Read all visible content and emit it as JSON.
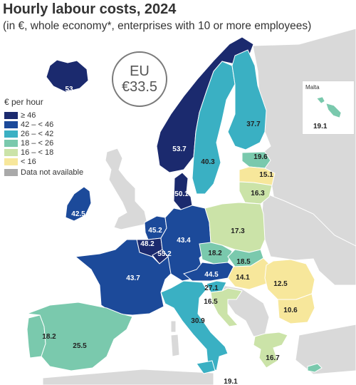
{
  "header": {
    "title": "Hourly labour costs, 2024",
    "subtitle": "(in €, whole economy*, enterprises with 10 or more employees)"
  },
  "eu_average": {
    "code": "EU",
    "value": "€33.5"
  },
  "legend": {
    "title": "€ per hour",
    "classes": [
      {
        "label": "≥ 46",
        "color": "#1b2a6e"
      },
      {
        "label": "42 – < 46",
        "color": "#1c4a9a"
      },
      {
        "label": "26 – < 42",
        "color": "#3ab0c3"
      },
      {
        "label": "18 – < 26",
        "color": "#7ac9ad"
      },
      {
        "label": "16 – < 18",
        "color": "#cbe3a8"
      },
      {
        "label": "< 16",
        "color": "#f7e79b"
      }
    ],
    "not_available": {
      "label": "Data not available",
      "color": "#a9a9a9"
    }
  },
  "inset": {
    "title": "Malta",
    "value": "19.1"
  },
  "countries": [
    {
      "code": "IS",
      "label": "53",
      "class": 0
    },
    {
      "code": "NO",
      "label": "53.7",
      "class": 0
    },
    {
      "code": "SE",
      "label": "40.3",
      "class": 2
    },
    {
      "code": "FI",
      "label": "37.7",
      "class": 2
    },
    {
      "code": "EE",
      "label": "19.6",
      "class": 3
    },
    {
      "code": "LV",
      "label": "15.1",
      "class": 5
    },
    {
      "code": "LT",
      "label": "16.3",
      "class": 4
    },
    {
      "code": "DK",
      "label": "50.1",
      "class": 0
    },
    {
      "code": "IE",
      "label": "42.5",
      "class": 1
    },
    {
      "code": "NL",
      "label": "45.2",
      "class": 1
    },
    {
      "code": "BE",
      "label": "48.2",
      "class": 0
    },
    {
      "code": "LU",
      "label": "55.2",
      "class": 0
    },
    {
      "code": "DE",
      "label": "43.4",
      "class": 1
    },
    {
      "code": "PL",
      "label": "17.3",
      "class": 4
    },
    {
      "code": "CZ",
      "label": "18.2",
      "class": 3
    },
    {
      "code": "SK",
      "label": "18.5",
      "class": 3
    },
    {
      "code": "AT",
      "label": "44.5",
      "class": 1
    },
    {
      "code": "HU",
      "label": "14.1",
      "class": 5
    },
    {
      "code": "RO",
      "label": "12.5",
      "class": 5
    },
    {
      "code": "BG",
      "label": "10.6",
      "class": 5
    },
    {
      "code": "FR",
      "label": "43.7",
      "class": 1
    },
    {
      "code": "SI",
      "label": "27.1",
      "class": 2
    },
    {
      "code": "HR",
      "label": "16.5",
      "class": 4
    },
    {
      "code": "IT",
      "label": "30.9",
      "class": 2
    },
    {
      "code": "PT",
      "label": "18.2",
      "class": 3
    },
    {
      "code": "ES",
      "label": "25.5",
      "class": 3
    },
    {
      "code": "EL",
      "label": "16.7",
      "class": 4
    },
    {
      "code": "CY",
      "label": "19.1",
      "class": 3
    }
  ]
}
